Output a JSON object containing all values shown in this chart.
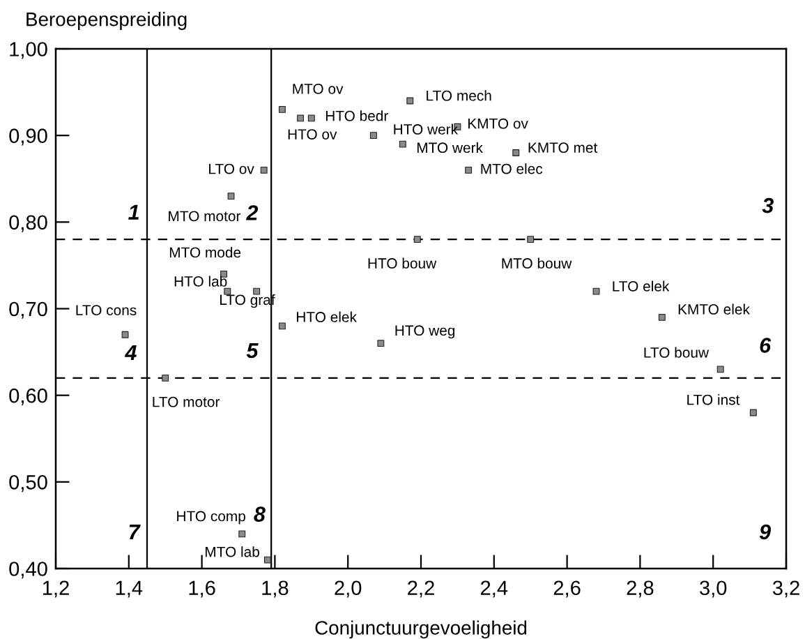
{
  "chart_data": {
    "type": "scatter",
    "xlabel": "Conjunctuurgevoeligheid",
    "ylabel": "Beroepenspreiding",
    "xlim": [
      1.2,
      3.2
    ],
    "xticks": [
      {
        "value": 1.2,
        "label": "1,2"
      },
      {
        "value": 1.4,
        "label": "1,4"
      },
      {
        "value": 1.6,
        "label": "1,6"
      },
      {
        "value": 1.8,
        "label": "1,8"
      },
      {
        "value": 2.0,
        "label": "2,0"
      },
      {
        "value": 2.2,
        "label": "2,2"
      },
      {
        "value": 2.4,
        "label": "2,4"
      },
      {
        "value": 2.6,
        "label": "2,6"
      },
      {
        "value": 2.8,
        "label": "2,8"
      },
      {
        "value": 3.0,
        "label": "3,0"
      },
      {
        "value": 3.2,
        "label": "3,2"
      }
    ],
    "ylim": [
      0.4,
      1.0
    ],
    "yticks": [
      {
        "value": 0.4,
        "label": "0,40"
      },
      {
        "value": 0.5,
        "label": "0,50"
      },
      {
        "value": 0.6,
        "label": "0,60"
      },
      {
        "value": 0.7,
        "label": "0,70"
      },
      {
        "value": 0.8,
        "label": "0,80"
      },
      {
        "value": 0.9,
        "label": "0,90"
      },
      {
        "value": 1.0,
        "label": "1,00"
      }
    ],
    "marker": "square",
    "grid": false,
    "legend": false,
    "series": [
      {
        "color": "#8a8a8a",
        "x": [
          1.82,
          1.87,
          1.9,
          2.17,
          2.07,
          2.3,
          2.15,
          2.46,
          2.33,
          1.77,
          1.68,
          2.19,
          2.5,
          1.66,
          1.67,
          1.75,
          2.68,
          2.86,
          1.39,
          1.82,
          2.09,
          3.02,
          1.5,
          3.11,
          1.71,
          1.78
        ],
        "values": [
          0.93,
          0.92,
          0.92,
          0.94,
          0.9,
          0.91,
          0.89,
          0.88,
          0.86,
          0.86,
          0.83,
          0.78,
          0.78,
          0.74,
          0.72,
          0.72,
          0.72,
          0.69,
          0.67,
          0.68,
          0.66,
          0.63,
          0.62,
          0.58,
          0.44,
          0.41
        ]
      }
    ],
    "ref_lines": [
      {
        "axis": "x",
        "value": 1.45,
        "color": "#000000",
        "line_style": "solid"
      },
      {
        "axis": "x",
        "value": 1.79,
        "color": "#000000",
        "line_style": "solid"
      },
      {
        "axis": "y",
        "value": 0.78,
        "color": "#000000",
        "line_style": "dashed"
      },
      {
        "axis": "y",
        "value": 0.62,
        "color": "#000000",
        "line_style": "dashed"
      }
    ],
    "annotations": [
      {
        "text": "MTO ov",
        "x": 1.82,
        "y": 0.93
      },
      {
        "text": "HTO ov",
        "x": 1.87,
        "y": 0.92
      },
      {
        "text": "HTO bedr",
        "x": 1.9,
        "y": 0.92
      },
      {
        "text": "LTO mech",
        "x": 2.17,
        "y": 0.94
      },
      {
        "text": "HTO werk",
        "x": 2.07,
        "y": 0.9
      },
      {
        "text": "KMTO ov",
        "x": 2.3,
        "y": 0.91
      },
      {
        "text": "MTO werk",
        "x": 2.15,
        "y": 0.89
      },
      {
        "text": "KMTO met",
        "x": 2.46,
        "y": 0.88
      },
      {
        "text": "MTO elec",
        "x": 2.33,
        "y": 0.86
      },
      {
        "text": "LTO ov",
        "x": 1.77,
        "y": 0.86
      },
      {
        "text": "MTO motor",
        "x": 1.68,
        "y": 0.83
      },
      {
        "text": "HTO bouw",
        "x": 2.19,
        "y": 0.78
      },
      {
        "text": "MTO bouw",
        "x": 2.5,
        "y": 0.78
      },
      {
        "text": "MTO mode",
        "x": 1.66,
        "y": 0.74
      },
      {
        "text": "HTO lab",
        "x": 1.67,
        "y": 0.72
      },
      {
        "text": "LTO graf",
        "x": 1.75,
        "y": 0.72
      },
      {
        "text": "LTO elek",
        "x": 2.68,
        "y": 0.72
      },
      {
        "text": "KMTO elek",
        "x": 2.86,
        "y": 0.69
      },
      {
        "text": "LTO cons",
        "x": 1.39,
        "y": 0.67
      },
      {
        "text": "HTO elek",
        "x": 1.82,
        "y": 0.68
      },
      {
        "text": "HTO weg",
        "x": 2.09,
        "y": 0.66
      },
      {
        "text": "LTO bouw",
        "x": 3.02,
        "y": 0.63
      },
      {
        "text": "LTO motor",
        "x": 1.5,
        "y": 0.62
      },
      {
        "text": "LTO inst",
        "x": 3.11,
        "y": 0.58
      },
      {
        "text": "HTO comp",
        "x": 1.71,
        "y": 0.44
      },
      {
        "text": "MTO lab",
        "x": 1.78,
        "y": 0.41
      },
      "1",
      "2",
      "3",
      "4",
      "5",
      "6",
      "7",
      "8",
      "9"
    ]
  }
}
